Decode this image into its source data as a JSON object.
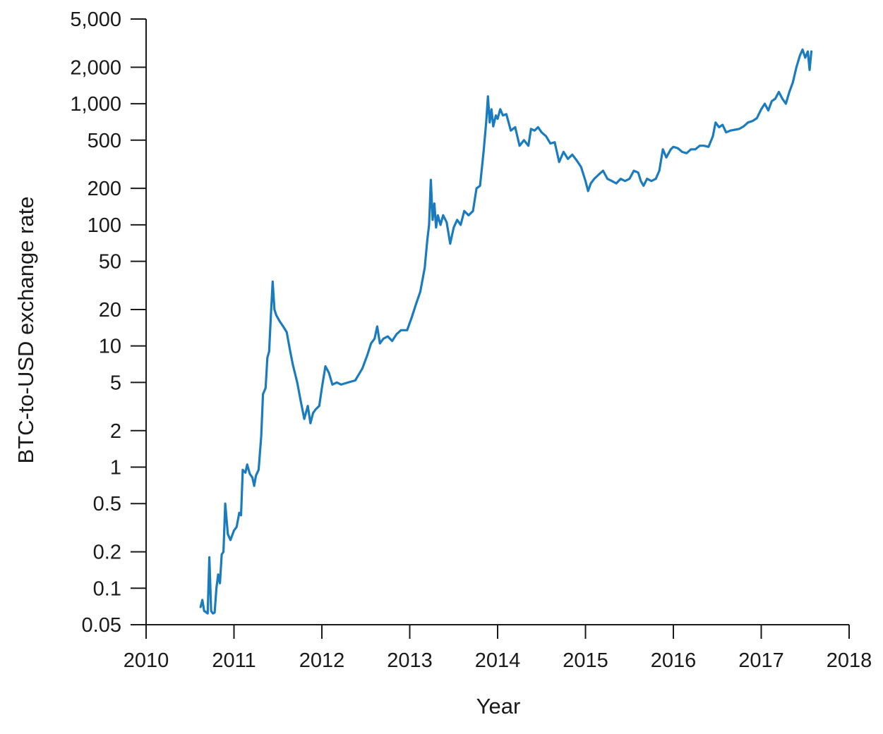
{
  "chart_data": {
    "type": "line",
    "title": "",
    "xlabel": "Year",
    "ylabel": "BTC-to-USD exchange rate",
    "yscale": "log",
    "xlim": [
      2010,
      2018
    ],
    "ylim": [
      0.05,
      5000
    ],
    "grid": false,
    "legend": "none",
    "x_ticks": [
      2010,
      2011,
      2012,
      2013,
      2014,
      2015,
      2016,
      2017,
      2018
    ],
    "x_tick_labels": [
      "2010",
      "2011",
      "2012",
      "2013",
      "2014",
      "2015",
      "2016",
      "2017",
      "2018"
    ],
    "y_ticks": [
      0.05,
      0.1,
      0.2,
      0.5,
      1,
      2,
      5,
      10,
      20,
      50,
      100,
      200,
      500,
      1000,
      2000,
      5000
    ],
    "y_tick_labels": [
      "0.05",
      "0.1",
      "0.2",
      "0.5",
      "1",
      "2",
      "5",
      "10",
      "20",
      "50",
      "100",
      "200",
      "500",
      "1,000",
      "2,000",
      "5,000"
    ],
    "series": [
      {
        "color": "#1a7bbf",
        "x": [
          2010.62,
          2010.64,
          2010.66,
          2010.7,
          2010.72,
          2010.74,
          2010.76,
          2010.78,
          2010.8,
          2010.82,
          2010.84,
          2010.86,
          2010.88,
          2010.9,
          2010.93,
          2010.96,
          2011.0,
          2011.03,
          2011.06,
          2011.08,
          2011.1,
          2011.13,
          2011.15,
          2011.18,
          2011.21,
          2011.23,
          2011.25,
          2011.28,
          2011.31,
          2011.33,
          2011.36,
          2011.38,
          2011.4,
          2011.42,
          2011.44,
          2011.46,
          2011.48,
          2011.52,
          2011.56,
          2011.6,
          2011.64,
          2011.67,
          2011.72,
          2011.76,
          2011.8,
          2011.84,
          2011.87,
          2011.9,
          2011.93,
          2011.97,
          2012.0,
          2012.04,
          2012.08,
          2012.12,
          2012.17,
          2012.22,
          2012.3,
          2012.38,
          2012.46,
          2012.52,
          2012.56,
          2012.6,
          2012.63,
          2012.66,
          2012.7,
          2012.75,
          2012.8,
          2012.85,
          2012.9,
          2012.97,
          2013.02,
          2013.07,
          2013.12,
          2013.17,
          2013.2,
          2013.22,
          2013.24,
          2013.26,
          2013.28,
          2013.3,
          2013.32,
          2013.35,
          2013.38,
          2013.42,
          2013.46,
          2013.5,
          2013.54,
          2013.58,
          2013.62,
          2013.67,
          2013.72,
          2013.76,
          2013.8,
          2013.84,
          2013.87,
          2013.89,
          2013.91,
          2013.93,
          2013.95,
          2013.98,
          2014.0,
          2014.03,
          2014.06,
          2014.1,
          2014.15,
          2014.2,
          2014.25,
          2014.3,
          2014.35,
          2014.38,
          2014.42,
          2014.46,
          2014.5,
          2014.55,
          2014.6,
          2014.65,
          2014.7,
          2014.75,
          2014.8,
          2014.85,
          2014.9,
          2014.95,
          2015.0,
          2015.03,
          2015.06,
          2015.1,
          2015.15,
          2015.2,
          2015.25,
          2015.3,
          2015.35,
          2015.4,
          2015.45,
          2015.5,
          2015.55,
          2015.6,
          2015.63,
          2015.66,
          2015.7,
          2015.75,
          2015.8,
          2015.84,
          2015.88,
          2015.92,
          2015.97,
          2016.0,
          2016.05,
          2016.1,
          2016.15,
          2016.2,
          2016.25,
          2016.3,
          2016.35,
          2016.4,
          2016.45,
          2016.48,
          2016.52,
          2016.56,
          2016.6,
          2016.65,
          2016.7,
          2016.75,
          2016.8,
          2016.85,
          2016.9,
          2016.95,
          2017.0,
          2017.04,
          2017.08,
          2017.12,
          2017.16,
          2017.2,
          2017.24,
          2017.28,
          2017.32,
          2017.36,
          2017.4,
          2017.44,
          2017.47,
          2017.5,
          2017.53,
          2017.55,
          2017.57
        ],
        "y": [
          0.07,
          0.08,
          0.065,
          0.062,
          0.18,
          0.065,
          0.062,
          0.063,
          0.1,
          0.13,
          0.11,
          0.19,
          0.2,
          0.5,
          0.28,
          0.25,
          0.3,
          0.32,
          0.42,
          0.4,
          0.95,
          0.9,
          1.05,
          0.88,
          0.82,
          0.7,
          0.85,
          0.95,
          1.8,
          4.0,
          4.5,
          8.0,
          9.0,
          18.0,
          34.0,
          20.0,
          18.0,
          16.0,
          14.5,
          13.0,
          9.0,
          7.0,
          5.0,
          3.5,
          2.5,
          3.2,
          2.3,
          2.8,
          3.0,
          3.2,
          4.5,
          6.8,
          6.0,
          4.8,
          5.0,
          4.8,
          5.0,
          5.2,
          6.5,
          8.5,
          10.5,
          11.5,
          14.5,
          10.5,
          11.5,
          12.0,
          11.0,
          12.5,
          13.5,
          13.5,
          17.0,
          22.0,
          28.0,
          44.0,
          75.0,
          100.0,
          235.0,
          110.0,
          150.0,
          95.0,
          120.0,
          100.0,
          120.0,
          105.0,
          70.0,
          95.0,
          110.0,
          100.0,
          130.0,
          120.0,
          130.0,
          200.0,
          210.0,
          400.0,
          700.0,
          1150.0,
          700.0,
          900.0,
          650.0,
          800.0,
          750.0,
          900.0,
          800.0,
          820.0,
          600.0,
          640.0,
          450.0,
          500.0,
          450.0,
          620.0,
          600.0,
          640.0,
          580.0,
          540.0,
          470.0,
          480.0,
          330.0,
          400.0,
          350.0,
          380.0,
          340.0,
          300.0,
          230.0,
          190.0,
          220.0,
          240.0,
          260.0,
          280.0,
          240.0,
          230.0,
          220.0,
          240.0,
          230.0,
          240.0,
          280.0,
          270.0,
          230.0,
          210.0,
          240.0,
          230.0,
          240.0,
          280.0,
          420.0,
          360.0,
          420.0,
          440.0,
          430.0,
          400.0,
          390.0,
          420.0,
          420.0,
          450.0,
          450.0,
          440.0,
          540.0,
          700.0,
          640.0,
          670.0,
          580.0,
          600.0,
          610.0,
          620.0,
          650.0,
          700.0,
          720.0,
          760.0,
          900.0,
          1000.0,
          880.0,
          1050.0,
          1100.0,
          1250.0,
          1100.0,
          1000.0,
          1250.0,
          1500.0,
          2000.0,
          2500.0,
          2800.0,
          2400.0,
          2700.0,
          1900.0,
          2700.0
        ]
      }
    ]
  }
}
